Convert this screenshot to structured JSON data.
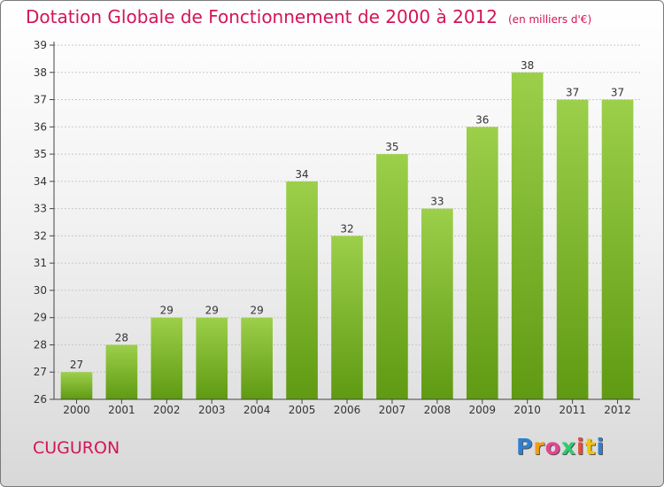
{
  "title": "Dotation Globale de Fonctionnement de 2000 à 2012",
  "units_note": "(en milliers d'€)",
  "commune": "CUGURON",
  "logo": {
    "letters": [
      "P",
      "r",
      "o",
      "x",
      "i",
      "t",
      "i"
    ],
    "colors": [
      "#2e7fd1",
      "#f39c12",
      "#e84393",
      "#2ecc71",
      "#e74c3c",
      "#f1c40f",
      "#2e7fd1"
    ]
  },
  "colors": {
    "bar_top": "#9ccf4a",
    "bar_bottom": "#5f9a12",
    "title": "#d4145a",
    "axis": "#444444"
  },
  "chart_data": {
    "type": "bar",
    "title": "Dotation Globale de Fonctionnement de 2000 à 2012",
    "subtitle": "(en milliers d'€)",
    "categories": [
      "2000",
      "2001",
      "2002",
      "2003",
      "2004",
      "2005",
      "2006",
      "2007",
      "2008",
      "2009",
      "2010",
      "2011",
      "2012"
    ],
    "values": [
      27,
      28,
      29,
      29,
      29,
      34,
      32,
      35,
      33,
      36,
      38,
      37,
      37
    ],
    "xlabel": "",
    "ylabel": "",
    "ylim": [
      26,
      39
    ],
    "yticks": [
      26,
      27,
      28,
      29,
      30,
      31,
      32,
      33,
      34,
      35,
      36,
      37,
      38,
      39
    ],
    "grid": true,
    "data_labels": true
  }
}
